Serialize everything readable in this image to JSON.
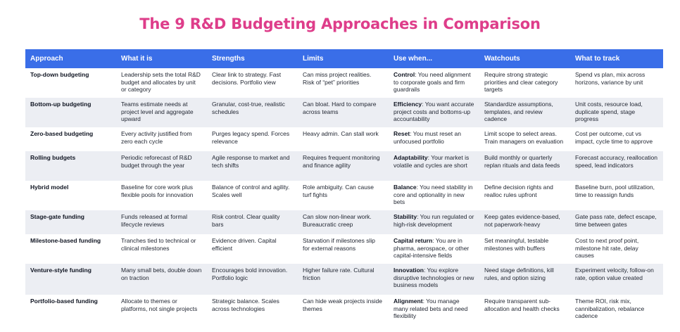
{
  "title": "The 9 R&D Budgeting Approaches in Comparison",
  "headers": [
    "Approach",
    "What it is",
    "Strengths",
    "Limits",
    "Use when...",
    "Watchouts",
    "What to track"
  ],
  "rows": [
    {
      "approach": "Top-down budgeting",
      "what": "Leadership sets the total R&D budget and allocates by unit or category",
      "strengths": "Clear link to strategy. Fast decisions. Portfolio view",
      "limits": "Can miss project realities. Risk of “pet” priorities",
      "use_kw": "Control",
      "use_text": ": You need alignment to corporate goals and firm guardrails",
      "watchouts": "Require strong strategic priorities and clear category targets",
      "track": "Spend vs plan, mix across horizons, variance by unit"
    },
    {
      "approach": "Bottom-up budgeting",
      "what": "Teams estimate needs at project level and aggregate upward",
      "strengths": "Granular, cost-true, realistic schedules",
      "limits": "Can bloat. Hard to compare across teams",
      "use_kw": "Efficiency",
      "use_text": ": You want accurate project costs and bottoms-up accountability",
      "watchouts": "Standardize assumptions, templates, and review cadence",
      "track": "Unit costs, resource load, duplicate spend, stage progress"
    },
    {
      "approach": "Zero-based budgeting",
      "what": "Every activity justified from zero each cycle",
      "strengths": "Purges legacy spend. Forces relevance",
      "limits": "Heavy admin. Can stall work",
      "use_kw": "Reset",
      "use_text": ": You must reset an unfocused portfolio",
      "watchouts": "Limit scope to select areas. Train managers on evaluation",
      "track": "Cost per outcome, cut vs impact, cycle time to approve"
    },
    {
      "approach": "Rolling budgets",
      "what": "Periodic reforecast of R&D budget through the year",
      "strengths": "Agile response to market and tech shifts",
      "limits": "Requires frequent monitoring and finance agility",
      "use_kw": "Adaptability",
      "use_text": ": Your market is volatile and cycles are short",
      "watchouts": "Build monthly or quarterly replan rituals and data feeds",
      "track": "Forecast accuracy, reallocation speed, lead indicators"
    },
    {
      "approach": "Hybrid model",
      "what": "Baseline for core work plus flexible pools for innovation",
      "strengths": "Balance of control and agility. Scales well",
      "limits": "Role ambiguity. Can cause turf fights",
      "use_kw": "Balance",
      "use_text": ": You need stability in core and optionality in new bets",
      "watchouts": "Define decision rights and realloc rules upfront",
      "track": "Baseline burn, pool utilization, time to reassign funds"
    },
    {
      "approach": "Stage-gate funding",
      "what": "Funds released at formal lifecycle reviews",
      "strengths": "Risk control. Clear quality bars",
      "limits": "Can slow non-linear work. Bureaucratic creep",
      "use_kw": "Stability",
      "use_text": ": You run regulated or high-risk development",
      "watchouts": "Keep gates evidence-based, not paperwork-heavy",
      "track": "Gate pass rate, defect escape, time between gates"
    },
    {
      "approach": "Milestone-based funding",
      "what": "Tranches tied to technical or clinical milestones",
      "strengths": "Evidence driven. Capital efficient",
      "limits": "Starvation if milestones slip for external reasons",
      "use_kw": "Capital return",
      "use_text": ": You are in pharma, aerospace, or other capital-intensive fields",
      "watchouts": "Set meaningful, testable milestones with buffers",
      "track": "Cost to next proof point, milestone hit rate, delay causes"
    },
    {
      "approach": "Venture-style funding",
      "what": "Many small bets, double down on traction",
      "strengths": "Encourages bold innovation. Portfolio logic",
      "limits": "Higher failure rate. Cultural friction",
      "use_kw": "Innovation",
      "use_text": ": You explore disruptive technologies or new business models",
      "watchouts": "Need stage definitions, kill rules, and option sizing",
      "track": "Experiment velocity, follow-on rate, option value created"
    },
    {
      "approach": "Portfolio-based funding",
      "what": "Allocate to themes or platforms, not single projects",
      "strengths": "Strategic balance. Scales across technologies",
      "limits": "Can hide weak projects inside themes",
      "use_kw": "Alignment",
      "use_text": ": You manage many related bets and need flexibility",
      "watchouts": "Require transparent sub-allocation and health checks",
      "track": "Theme ROI, risk mix, cannibalization, rebalance cadence"
    }
  ],
  "colors": {
    "title": "#de3d8a",
    "header_bg": "#3a6ee8",
    "alt_row_bg": "#eceef3"
  }
}
